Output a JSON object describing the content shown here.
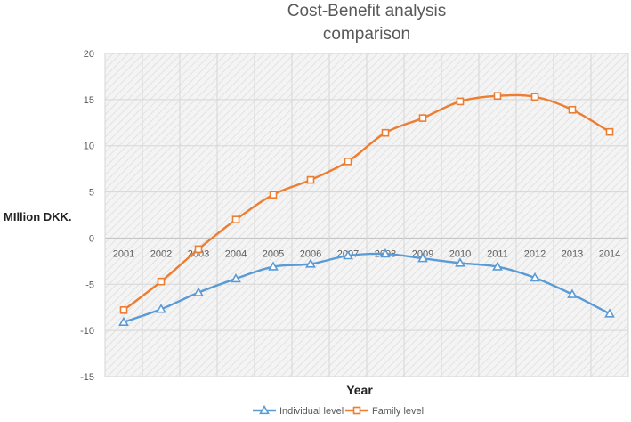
{
  "chart_data": {
    "type": "line",
    "title_lines": [
      "Cost-Benefit analysis",
      "comparison"
    ],
    "xlabel": "Year",
    "ylabel": "MIllion DKK.",
    "ylim": [
      -15,
      20
    ],
    "y_ticks": [
      20,
      15,
      10,
      5,
      0,
      -5,
      -10,
      -15
    ],
    "categories": [
      "2001",
      "2002",
      "2003",
      "2004",
      "2005",
      "2006",
      "2007",
      "2008",
      "2009",
      "2010",
      "2011",
      "2012",
      "2013",
      "2014"
    ],
    "grid": true,
    "legend_position": "bottom",
    "series": [
      {
        "name": "Individual level",
        "color": "#5b9bd5",
        "marker": "triangle",
        "values": [
          -9.1,
          -7.7,
          -5.9,
          -4.4,
          -3.1,
          -2.8,
          -1.9,
          -1.7,
          -2.2,
          -2.7,
          -3.1,
          -4.3,
          -6.1,
          -8.2
        ]
      },
      {
        "name": "Family level",
        "color": "#ed7d31",
        "marker": "square",
        "values": [
          -7.8,
          -4.7,
          -1.2,
          2.0,
          4.7,
          6.3,
          8.3,
          11.4,
          13.0,
          14.8,
          15.4,
          15.3,
          13.9,
          11.5
        ]
      }
    ]
  }
}
